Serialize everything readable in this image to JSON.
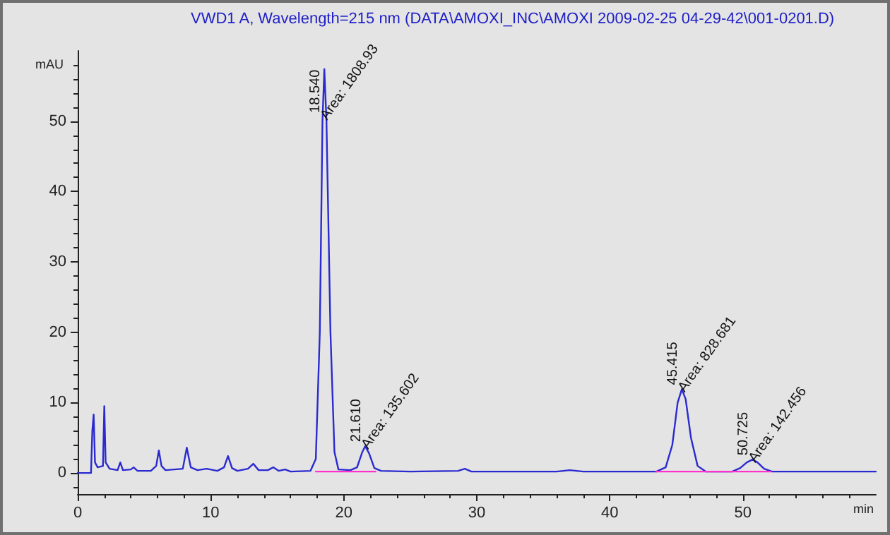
{
  "chart_data": {
    "type": "line",
    "title": "VWD1 A, Wavelength=215 nm (DATA\\AMOXI_INC\\AMOXI 2009-02-25 04-29-42\\001-0201.D)",
    "xlabel": "min",
    "ylabel": "mAU",
    "xlim": [
      0,
      60
    ],
    "xticks": [
      0,
      10,
      20,
      30,
      40,
      50
    ],
    "ylim": [
      -3,
      60
    ],
    "yticks": [
      0,
      10,
      20,
      30,
      40,
      50
    ],
    "grid": false,
    "marker": "none",
    "line_style": "solid",
    "series": [
      {
        "color": "#2a2ad0",
        "x": [
          0,
          1.0,
          1.1,
          1.2,
          1.3,
          1.5,
          1.9,
          2.0,
          2.1,
          2.4,
          3.0,
          3.2,
          3.4,
          4.0,
          4.2,
          4.5,
          5.5,
          5.9,
          6.1,
          6.3,
          6.6,
          7.9,
          8.2,
          8.5,
          9.0,
          9.7,
          10.5,
          11.0,
          11.3,
          11.6,
          12.0,
          12.8,
          13.2,
          13.6,
          14.3,
          14.7,
          15.1,
          15.6,
          16.0,
          17.5,
          17.9,
          18.2,
          18.4,
          18.54,
          18.7,
          19.0,
          19.3,
          19.6,
          20.5,
          21.0,
          21.4,
          21.61,
          21.9,
          22.3,
          22.8,
          25,
          28.6,
          29.1,
          29.6,
          36,
          37,
          38,
          43.5,
          44.2,
          44.7,
          45.1,
          45.415,
          45.7,
          46.1,
          46.6,
          47.2,
          49.2,
          49.8,
          50.3,
          50.725,
          51.1,
          51.6,
          52.2,
          60
        ],
        "values": [
          0,
          0,
          6,
          8.3,
          1.5,
          0.8,
          1,
          9.5,
          1.5,
          0.6,
          0.4,
          1.5,
          0.4,
          0.5,
          0.8,
          0.3,
          0.3,
          1,
          3.2,
          1,
          0.4,
          0.6,
          3.6,
          0.8,
          0.4,
          0.6,
          0.3,
          0.8,
          2.4,
          0.7,
          0.3,
          0.6,
          1.3,
          0.4,
          0.4,
          0.8,
          0.3,
          0.5,
          0.2,
          0.3,
          2,
          20,
          50,
          57.4,
          50,
          20,
          3,
          0.5,
          0.4,
          0.8,
          3,
          3.8,
          2.8,
          0.7,
          0.3,
          0.2,
          0.3,
          0.6,
          0.2,
          0.2,
          0.4,
          0.2,
          0.2,
          0.8,
          4,
          10,
          11.9,
          10.5,
          5,
          1,
          0.2,
          0.2,
          0.7,
          1.5,
          1.9,
          1.5,
          0.6,
          0.2,
          0.2
        ]
      },
      {
        "color": "#ff33cc",
        "x": [
          17.9,
          22.4
        ],
        "values": [
          0.2,
          0.2
        ]
      },
      {
        "color": "#ff33cc",
        "x": [
          43.5,
          52.1
        ],
        "values": [
          0.2,
          0.2
        ]
      }
    ],
    "annotations": [
      {
        "text": "18.540",
        "x": 18.54,
        "y": 57.4
      },
      {
        "text": "Area: 1808.93",
        "x": 18.54,
        "y": 57.4
      },
      {
        "text": "21.610",
        "x": 21.61,
        "y": 3.8
      },
      {
        "text": "Area: 135.602",
        "x": 21.61,
        "y": 3.8
      },
      {
        "text": "45.415",
        "x": 45.415,
        "y": 11.9
      },
      {
        "text": "Area: 828.681",
        "x": 45.415,
        "y": 11.9
      },
      {
        "text": "50.725",
        "x": 50.725,
        "y": 1.9
      },
      {
        "text": "Area: 142.456",
        "x": 50.725,
        "y": 1.9
      }
    ]
  }
}
